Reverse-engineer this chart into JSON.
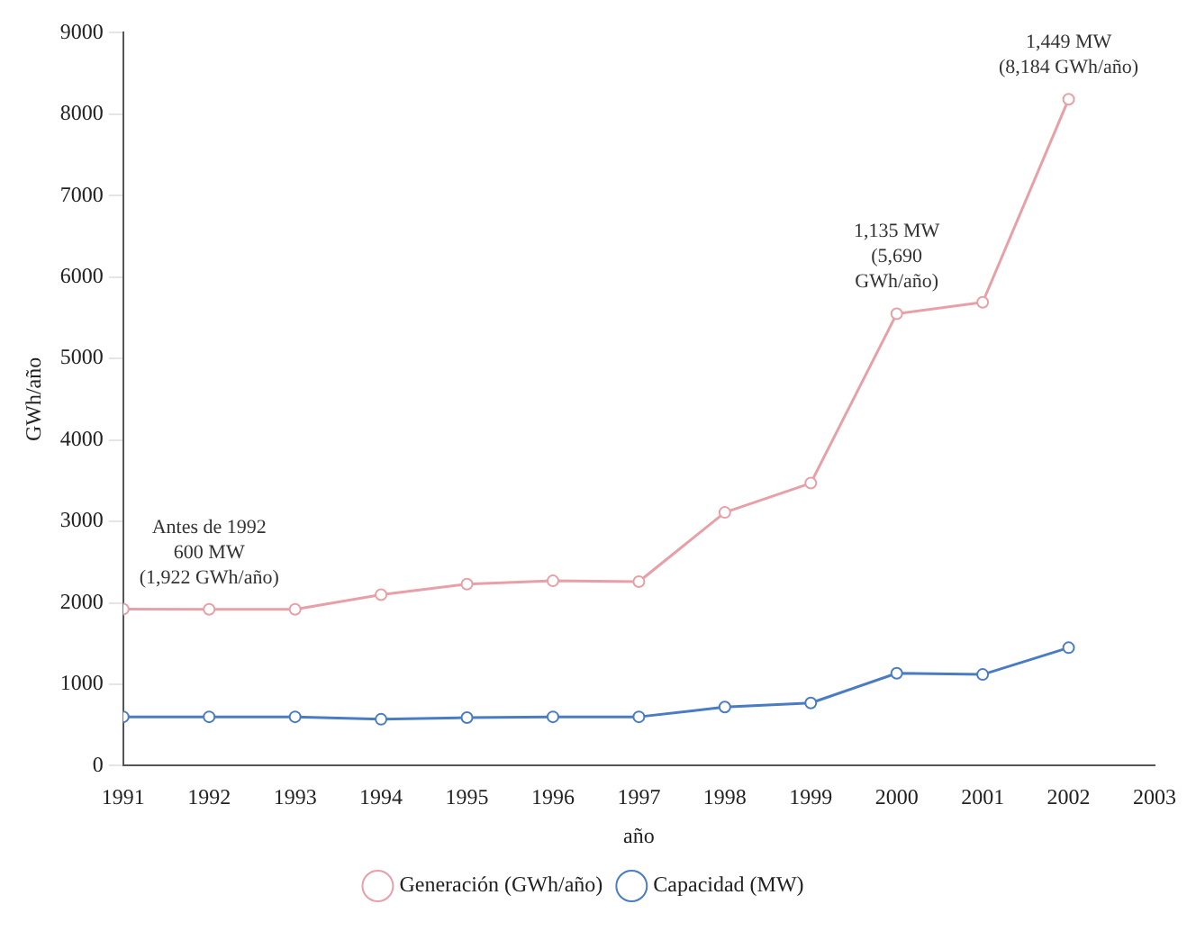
{
  "chart_data": {
    "type": "line",
    "xlabel": "año",
    "ylabel": "GWh/año",
    "x": [
      1991,
      1992,
      1993,
      1994,
      1995,
      1996,
      1997,
      1998,
      1999,
      2000,
      2001,
      2002
    ],
    "series": [
      {
        "name": "Generación (GWh/año)",
        "color": "#e8a0a8",
        "values": [
          1922,
          1920,
          1920,
          2100,
          2230,
          2270,
          2260,
          3110,
          3470,
          5550,
          5690,
          8184
        ]
      },
      {
        "name": "Capacidad (MW)",
        "color": "#4a7cc4",
        "values": [
          600,
          600,
          600,
          570,
          590,
          600,
          600,
          720,
          770,
          1135,
          1120,
          1449
        ]
      }
    ],
    "xlim": [
      1991,
      2003
    ],
    "xticks": [
      1991,
      1992,
      1993,
      1994,
      1995,
      1996,
      1997,
      1998,
      1999,
      2000,
      2001,
      2002,
      2003
    ],
    "ylim": [
      0,
      9000
    ],
    "yticks": [
      0,
      1000,
      2000,
      3000,
      4000,
      5000,
      6000,
      7000,
      8000,
      9000
    ],
    "grid": false,
    "legend": "bottom",
    "marker": "circle",
    "line_style": "solid",
    "annotations": [
      {
        "text": "Antes de 1992\n600 MW\n(1,922 GWh/año)",
        "x": 1992,
        "y": 1920
      },
      {
        "text": "1,135 MW\n(5,690\nGWh/año)",
        "x": 2000,
        "y": 5550
      },
      {
        "text": "1,449 MW\n(8,184 GWh/año)",
        "x": 2002,
        "y": 8184
      }
    ]
  }
}
